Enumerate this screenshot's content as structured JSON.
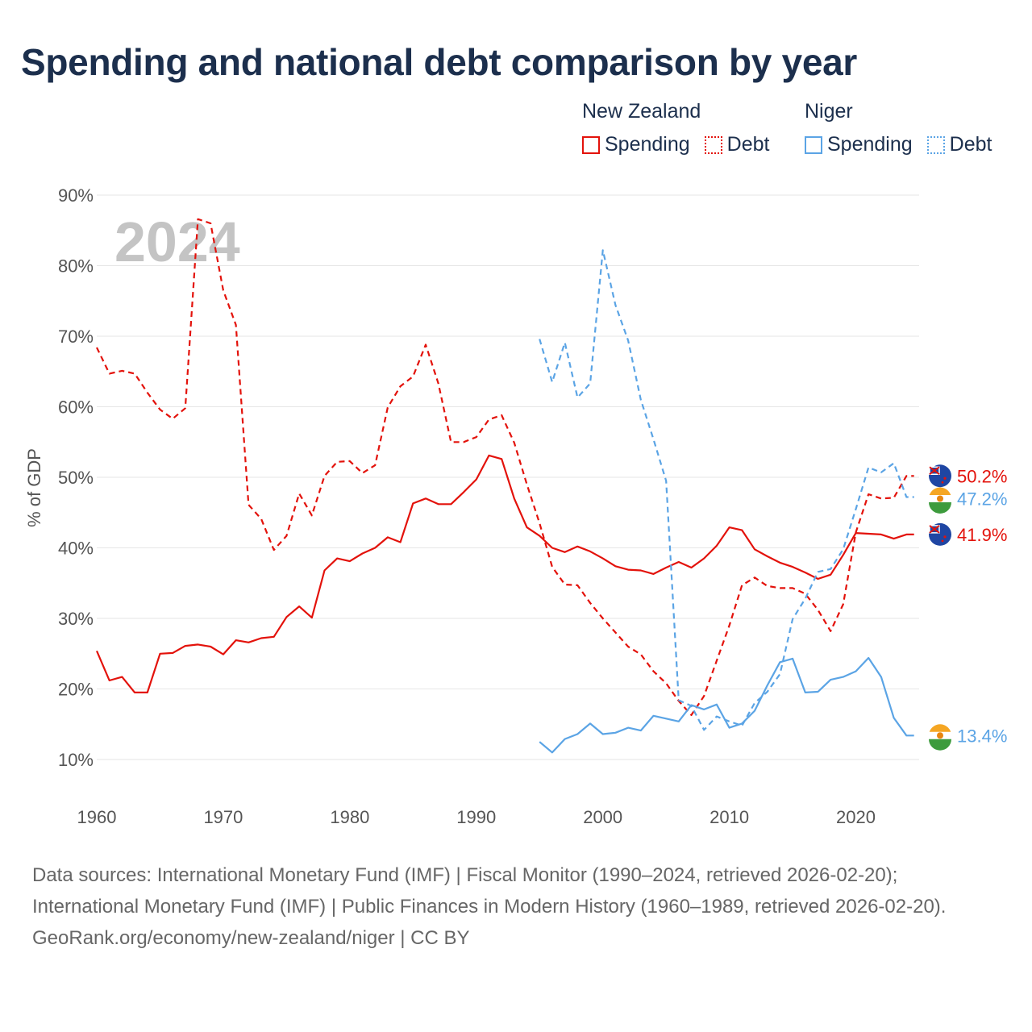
{
  "title": "Spending and national debt comparison by year",
  "legend": {
    "groups": [
      {
        "country": "New Zealand",
        "items": [
          {
            "label": "Spending",
            "style": "solid",
            "color": "#e3120b"
          },
          {
            "label": "Debt",
            "style": "dotted",
            "color": "#e3120b"
          }
        ]
      },
      {
        "country": "Niger",
        "items": [
          {
            "label": "Spending",
            "style": "solid",
            "color": "#5ba4e5"
          },
          {
            "label": "Debt",
            "style": "dotted",
            "color": "#5ba4e5"
          }
        ]
      }
    ]
  },
  "source": {
    "line1": "Data sources: International Monetary Fund (IMF) | Fiscal Monitor (1990–2024, retrieved 2026-02-20); International Monetary Fund (IMF) | Public Finances in Modern History (1960–1989, retrieved 2026-02-20).",
    "line2": "GeoRank.org/economy/new-zealand/niger | CC BY"
  },
  "chart_data": {
    "type": "line",
    "title": "Spending and national debt comparison by year",
    "ylabel": "% of GDP",
    "xlabel": "",
    "year_watermark": "2024",
    "xlim": [
      1960,
      2025
    ],
    "ylim": [
      10,
      90
    ],
    "grid": true,
    "legend_position": "top-right",
    "xticks": [
      1960,
      1970,
      1980,
      1990,
      2000,
      2010,
      2020
    ],
    "yticks": [
      10,
      20,
      30,
      40,
      50,
      60,
      70,
      80,
      90
    ],
    "ytick_labels": [
      "10%",
      "20%",
      "30%",
      "40%",
      "50%",
      "60%",
      "70%",
      "80%",
      "90%"
    ],
    "series": [
      {
        "name": "New Zealand Spending",
        "color": "#e3120b",
        "dash": "solid",
        "end_label": "41.9%",
        "flag": "new-zealand",
        "x": [
          1960,
          1961,
          1962,
          1963,
          1964,
          1965,
          1966,
          1967,
          1968,
          1969,
          1970,
          1971,
          1972,
          1973,
          1974,
          1975,
          1976,
          1977,
          1978,
          1979,
          1980,
          1981,
          1982,
          1983,
          1984,
          1985,
          1986,
          1987,
          1988,
          1989,
          1990,
          1991,
          1992,
          1993,
          1994,
          1995,
          1996,
          1997,
          1998,
          1999,
          2000,
          2001,
          2002,
          2003,
          2004,
          2005,
          2006,
          2007,
          2008,
          2009,
          2010,
          2011,
          2012,
          2013,
          2014,
          2015,
          2016,
          2017,
          2018,
          2019,
          2020,
          2021,
          2022,
          2023,
          2024
        ],
        "values": [
          25.4,
          21.2,
          21.7,
          19.5,
          19.5,
          25.0,
          25.1,
          26.1,
          26.3,
          26.0,
          24.9,
          26.9,
          26.6,
          27.2,
          27.4,
          30.2,
          31.7,
          30.1,
          36.8,
          38.5,
          38.1,
          39.2,
          40.0,
          41.5,
          40.8,
          46.3,
          47.0,
          46.2,
          46.2,
          47.9,
          49.7,
          53.1,
          52.6,
          47.0,
          42.9,
          41.7,
          40.0,
          39.4,
          40.2,
          39.5,
          38.5,
          37.4,
          36.9,
          36.8,
          36.3,
          37.2,
          38.0,
          37.2,
          38.5,
          40.3,
          42.9,
          42.5,
          39.8,
          38.8,
          37.9,
          37.3,
          36.5,
          35.6,
          36.2,
          39.0,
          42.1,
          42.0,
          41.9,
          41.3,
          41.9
        ]
      },
      {
        "name": "New Zealand Debt",
        "color": "#e3120b",
        "dash": "dotted",
        "end_label": "50.2%",
        "flag": "new-zealand",
        "x": [
          1960,
          1961,
          1962,
          1963,
          1964,
          1965,
          1966,
          1967,
          1968,
          1969,
          1970,
          1971,
          1972,
          1973,
          1974,
          1975,
          1976,
          1977,
          1978,
          1979,
          1980,
          1981,
          1982,
          1983,
          1984,
          1985,
          1986,
          1987,
          1988,
          1989,
          1990,
          1991,
          1992,
          1993,
          1994,
          1995,
          1996,
          1997,
          1998,
          1999,
          2000,
          2001,
          2002,
          2003,
          2004,
          2005,
          2006,
          2007,
          2008,
          2009,
          2010,
          2011,
          2012,
          2013,
          2014,
          2015,
          2016,
          2017,
          2018,
          2019,
          2020,
          2021,
          2022,
          2023,
          2024
        ],
        "values": [
          68.4,
          64.7,
          65.1,
          64.7,
          62.0,
          59.6,
          58.3,
          59.8,
          86.6,
          86.0,
          76.5,
          71.6,
          46.1,
          44.1,
          39.7,
          41.7,
          47.7,
          44.6,
          50.2,
          52.2,
          52.3,
          50.6,
          51.7,
          59.9,
          62.9,
          64.3,
          68.8,
          63.3,
          55.0,
          55.0,
          55.7,
          58.2,
          58.8,
          54.9,
          49.0,
          43.5,
          37.3,
          34.8,
          34.7,
          32.2,
          30.0,
          28.0,
          26.0,
          24.9,
          22.5,
          20.8,
          18.3,
          16.3,
          19.0,
          24.0,
          29.0,
          34.7,
          35.8,
          34.6,
          34.3,
          34.3,
          33.5,
          31.2,
          28.2,
          32.0,
          42.2,
          47.6,
          47.0,
          47.1,
          50.2
        ]
      },
      {
        "name": "Niger Spending",
        "color": "#5ba4e5",
        "dash": "solid",
        "end_label": "13.4%",
        "flag": "niger",
        "x": [
          1995,
          1996,
          1997,
          1998,
          1999,
          2000,
          2001,
          2002,
          2003,
          2004,
          2005,
          2006,
          2007,
          2008,
          2009,
          2010,
          2011,
          2012,
          2013,
          2014,
          2015,
          2016,
          2017,
          2018,
          2019,
          2020,
          2021,
          2022,
          2023,
          2024
        ],
        "values": [
          12.5,
          11.0,
          12.9,
          13.6,
          15.1,
          13.6,
          13.8,
          14.5,
          14.1,
          16.2,
          15.8,
          15.4,
          17.7,
          17.1,
          17.8,
          14.5,
          15.1,
          16.9,
          20.5,
          23.8,
          24.3,
          19.5,
          19.6,
          21.3,
          21.7,
          22.5,
          24.4,
          21.7,
          15.9,
          13.4
        ]
      },
      {
        "name": "Niger Debt",
        "color": "#5ba4e5",
        "dash": "dotted",
        "end_label": "47.2%",
        "flag": "niger",
        "x": [
          1995,
          1996,
          1997,
          1998,
          1999,
          2000,
          2001,
          2002,
          2003,
          2004,
          2005,
          2006,
          2007,
          2008,
          2009,
          2010,
          2011,
          2012,
          2013,
          2014,
          2015,
          2016,
          2017,
          2018,
          2019,
          2020,
          2021,
          2022,
          2023,
          2024
        ],
        "values": [
          69.6,
          63.5,
          69.1,
          61.3,
          63.3,
          82.2,
          74.4,
          69.4,
          61.0,
          55.4,
          49.5,
          18.4,
          17.6,
          14.2,
          16.1,
          15.4,
          14.8,
          18.0,
          19.6,
          22.1,
          29.9,
          32.8,
          36.6,
          37.0,
          39.8,
          45.5,
          51.4,
          50.7,
          52.0,
          47.2
        ]
      }
    ]
  }
}
